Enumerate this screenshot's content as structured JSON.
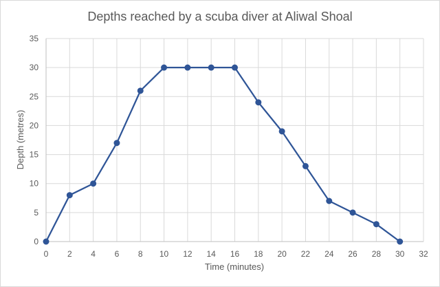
{
  "chart_data": {
    "type": "line",
    "title": "Depths reached by a scuba diver at Aliwal Shoal",
    "xlabel": "Time (minutes)",
    "ylabel": "Depth (metres)",
    "xlim": [
      0,
      32
    ],
    "ylim": [
      0,
      35
    ],
    "x_ticks": [
      0,
      2,
      4,
      6,
      8,
      10,
      12,
      14,
      16,
      18,
      20,
      22,
      24,
      26,
      28,
      30,
      32
    ],
    "y_ticks": [
      0,
      5,
      10,
      15,
      20,
      25,
      30,
      35
    ],
    "grid": true,
    "series": [
      {
        "color": "#2f5597",
        "points": [
          {
            "x": 0,
            "y": 0
          },
          {
            "x": 2,
            "y": 8
          },
          {
            "x": 4,
            "y": 10
          },
          {
            "x": 6,
            "y": 17
          },
          {
            "x": 8,
            "y": 26
          },
          {
            "x": 10,
            "y": 30
          },
          {
            "x": 12,
            "y": 30
          },
          {
            "x": 14,
            "y": 30
          },
          {
            "x": 16,
            "y": 30
          },
          {
            "x": 18,
            "y": 24
          },
          {
            "x": 20,
            "y": 19
          },
          {
            "x": 22,
            "y": 13
          },
          {
            "x": 24,
            "y": 7
          },
          {
            "x": 26,
            "y": 5
          },
          {
            "x": 28,
            "y": 3
          },
          {
            "x": 30,
            "y": 0
          }
        ]
      }
    ]
  }
}
